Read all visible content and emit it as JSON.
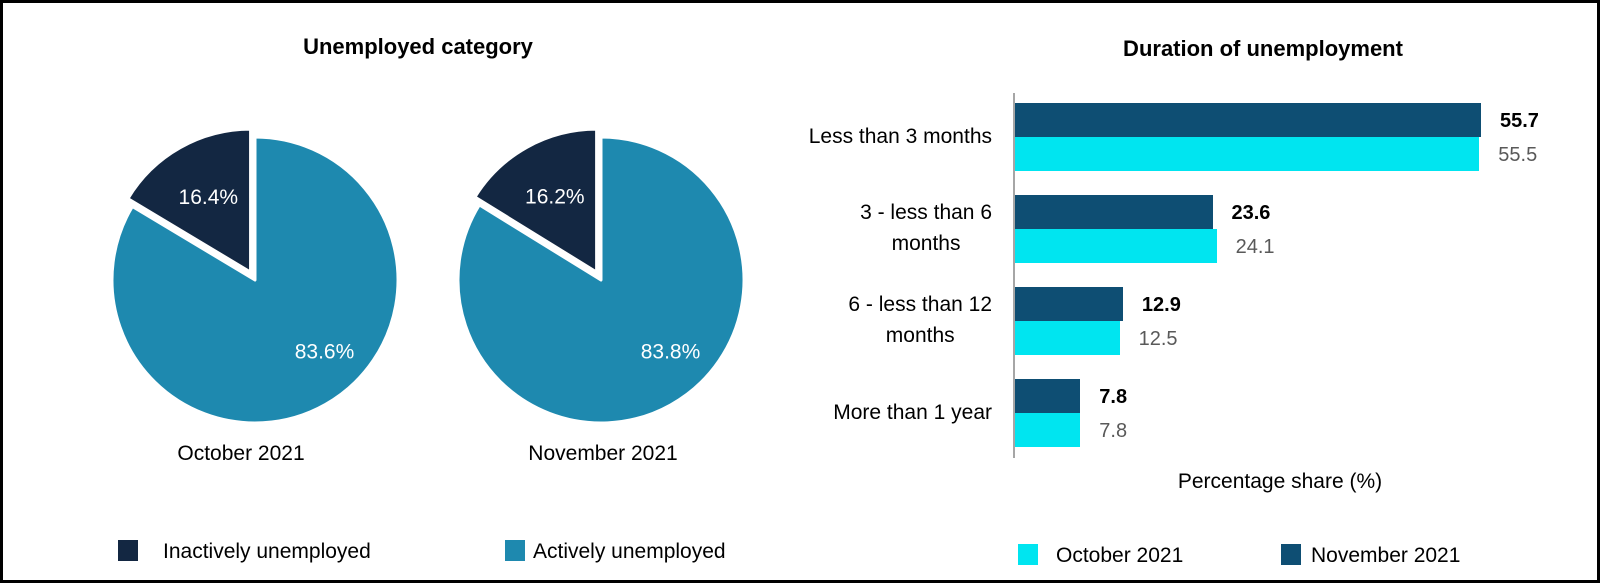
{
  "chart_data": [
    {
      "type": "pie",
      "title": "Unemployed category",
      "slice_names": [
        "Inactively unemployed",
        "Actively unemployed"
      ],
      "colors": [
        "#132742",
        "#1E89AF"
      ],
      "slice_label_color": "#FFFFFF",
      "legend_position": "bottom",
      "pies": [
        {
          "label": "October 2021",
          "values": [
            16.4,
            83.6
          ]
        },
        {
          "label": "November 2021",
          "values": [
            16.2,
            83.8
          ]
        }
      ]
    },
    {
      "type": "bar",
      "orientation": "horizontal",
      "title": "Duration of unemployment",
      "xlabel": "Percentage share (%)",
      "xlim": [
        0,
        60
      ],
      "grid": false,
      "legend_position": "bottom",
      "axis_color": "#A6A6A6",
      "categories": [
        "Less than 3 months",
        "3 - less than 6 months",
        "6 - less than 12 months",
        "More than 1 year"
      ],
      "category_display_lines": [
        [
          "Less than 3 months"
        ],
        [
          "3 - less than 6",
          "months"
        ],
        [
          "6 - less than 12",
          "months"
        ],
        [
          "More than 1 year"
        ]
      ],
      "series": [
        {
          "name": "October 2021",
          "color": "#00E5F0",
          "values": [
            55.5,
            24.1,
            12.5,
            7.8
          ],
          "value_label_color": "#595959",
          "value_label_bold": false
        },
        {
          "name": "November 2021",
          "color": "#0E4E73",
          "values": [
            55.7,
            23.6,
            12.9,
            7.8
          ],
          "value_label_color": "#000000",
          "value_label_bold": true
        }
      ]
    }
  ]
}
